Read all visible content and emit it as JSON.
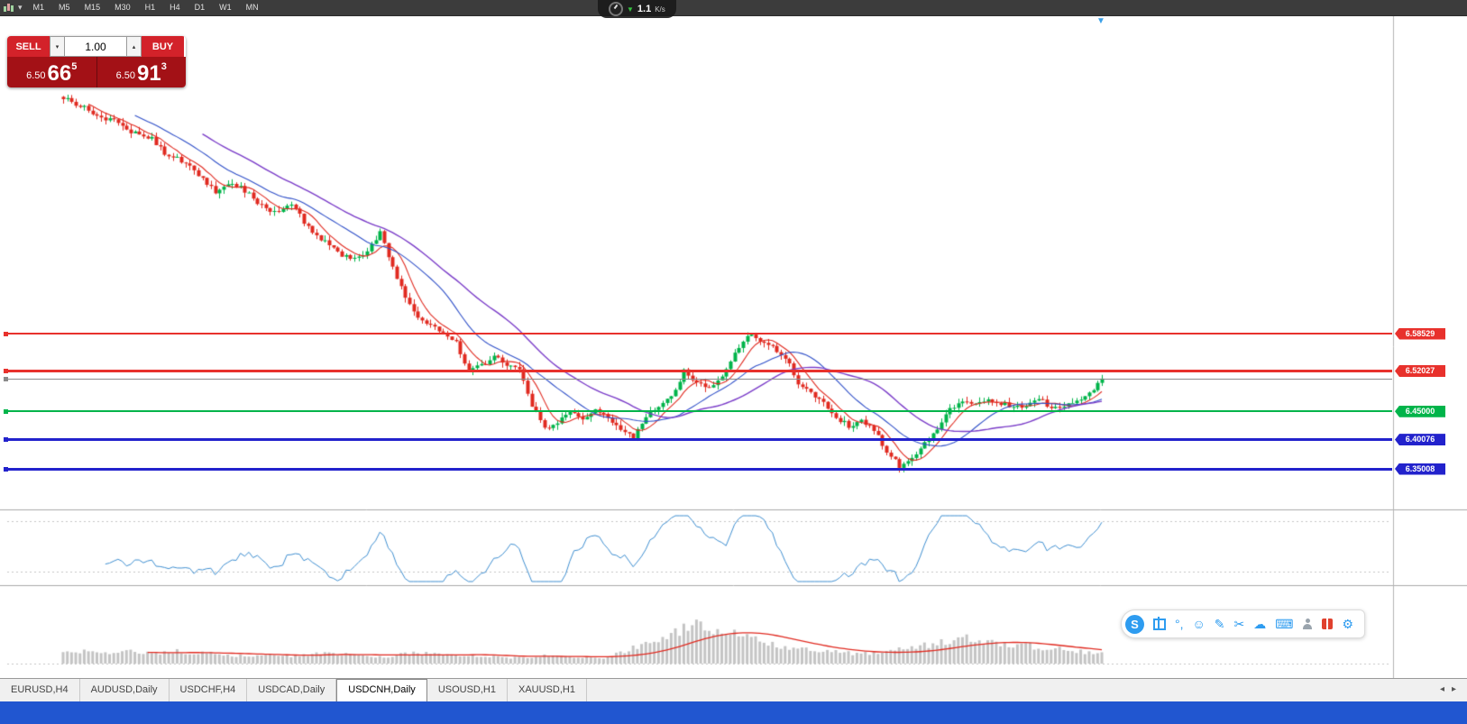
{
  "toolbar": {
    "timeframes": [
      "M1",
      "M5",
      "M15",
      "M30",
      "H1",
      "H4",
      "D1",
      "W1",
      "MN"
    ]
  },
  "net_speed": {
    "value": "1.1",
    "unit": "K/s"
  },
  "trade_panel": {
    "sell_label": "SELL",
    "buy_label": "BUY",
    "volume": "1.00",
    "sell_price": {
      "prefix": "6.50",
      "big": "66",
      "sup": "5"
    },
    "buy_price": {
      "prefix": "6.50",
      "big": "91",
      "sup": "3"
    },
    "colors": {
      "button_red": "#d3222a",
      "panel_red": "#a31116"
    }
  },
  "chart_data": {
    "type": "candlestick",
    "symbol": "USDCNH",
    "timeframe": "Daily",
    "ylim": [
      6.32,
      7.03
    ],
    "levels": [
      {
        "label": "6.58529",
        "value": 6.58529,
        "color": "#e8312c",
        "thickness": 2
      },
      {
        "label": "6.52027",
        "value": 6.52027,
        "color": "#e8312c",
        "thickness": 3
      },
      {
        "label": "6.45000",
        "value": 6.45,
        "color": "#00b44a",
        "thickness": 2
      },
      {
        "label": "6.40076",
        "value": 6.40076,
        "color": "#2222cc",
        "thickness": 3
      },
      {
        "label": "6.35008",
        "value": 6.35008,
        "color": "#2222cc",
        "thickness": 3
      }
    ],
    "current_price": {
      "value": 6.5066,
      "color": "#8a8a8a"
    },
    "candle_colors": {
      "up": "#00b44a",
      "down": "#e02a20"
    },
    "moving_averages": [
      {
        "period": 7,
        "color": "#e02a20"
      },
      {
        "period": 18,
        "color": "#3050c8"
      },
      {
        "period": 34,
        "color": "#7a3cc8"
      }
    ],
    "closes_sampled": [
      6.995,
      6.985,
      6.975,
      6.96,
      6.955,
      6.94,
      6.93,
      6.925,
      6.9,
      6.89,
      6.875,
      6.855,
      6.83,
      6.845,
      6.84,
      6.82,
      6.8,
      6.795,
      6.81,
      6.78,
      6.755,
      6.74,
      6.72,
      6.715,
      6.73,
      6.76,
      6.7,
      6.65,
      6.615,
      6.6,
      6.585,
      6.57,
      6.52,
      6.53,
      6.545,
      6.53,
      6.52,
      6.46,
      6.42,
      6.43,
      6.45,
      6.44,
      6.45,
      6.44,
      6.42,
      6.405,
      6.44,
      6.46,
      6.475,
      6.52,
      6.5,
      6.49,
      6.51,
      6.55,
      6.585,
      6.57,
      6.56,
      6.545,
      6.5,
      6.48,
      6.465,
      6.44,
      6.425,
      6.435,
      6.42,
      6.38,
      6.355,
      6.37,
      6.395,
      6.42,
      6.455,
      6.465,
      6.46,
      6.47,
      6.465,
      6.455,
      6.46,
      6.475,
      6.455,
      6.46,
      6.47,
      6.48,
      6.507
    ],
    "indicator1": {
      "type": "line",
      "color": "#3e8ed0"
    },
    "indicator2": {
      "type": "histogram",
      "bar_color": "#c4c4c4",
      "signal_color": "#e02a20",
      "envelope": [
        0.3,
        0.34,
        0.3,
        0.28,
        0.3,
        0.32,
        0.28,
        0.26,
        0.3,
        0.32,
        0.3,
        0.28,
        0.25,
        0.22,
        0.2,
        0.22,
        0.25,
        0.22,
        0.2,
        0.22,
        0.25,
        0.28,
        0.25,
        0.22,
        0.2,
        0.18,
        0.2,
        0.25,
        0.28,
        0.25,
        0.22,
        0.2,
        0.22,
        0.2,
        0.18,
        0.16,
        0.15,
        0.18,
        0.22,
        0.2,
        0.18,
        0.15,
        0.14,
        0.16,
        0.3,
        0.42,
        0.55,
        0.68,
        0.8,
        0.92,
        1.0,
        0.96,
        0.9,
        0.82,
        0.72,
        0.62,
        0.52,
        0.46,
        0.4,
        0.36,
        0.32,
        0.3,
        0.28,
        0.26,
        0.28,
        0.32,
        0.36,
        0.4,
        0.48,
        0.56,
        0.62,
        0.66,
        0.64,
        0.6,
        0.56,
        0.52,
        0.48,
        0.44,
        0.4,
        0.36,
        0.32,
        0.3,
        0.28
      ]
    }
  },
  "tabs": {
    "items": [
      "EURUSD,H4",
      "AUDUSD,Daily",
      "USDCHF,H4",
      "USDCAD,Daily",
      "USDCNH,Daily",
      "USOUSD,H1",
      "XAUUSD,H1"
    ],
    "active_index": 4
  },
  "ime": {
    "items": [
      {
        "name": "ime-logo-icon",
        "kind": "logo",
        "glyph": "S"
      },
      {
        "name": "chinese-mode-icon",
        "kind": "zh",
        "glyph": ""
      },
      {
        "name": "punctuation-icon",
        "kind": "glyph",
        "glyph": "°,"
      },
      {
        "name": "emoji-icon",
        "kind": "glyph",
        "glyph": "☺"
      },
      {
        "name": "handwriting-icon",
        "kind": "glyph",
        "glyph": "✎"
      },
      {
        "name": "screenshot-icon",
        "kind": "glyph",
        "glyph": "✂"
      },
      {
        "name": "cloud-icon",
        "kind": "glyph",
        "glyph": "☁"
      },
      {
        "name": "keyboard-icon",
        "kind": "glyph",
        "glyph": "⌨"
      },
      {
        "name": "account-icon",
        "kind": "person",
        "glyph": ""
      },
      {
        "name": "skin-icon",
        "kind": "gift",
        "glyph": ""
      },
      {
        "name": "settings-icon",
        "kind": "glyph",
        "glyph": "⚙"
      }
    ]
  },
  "taskbar_color": "#2156d0"
}
